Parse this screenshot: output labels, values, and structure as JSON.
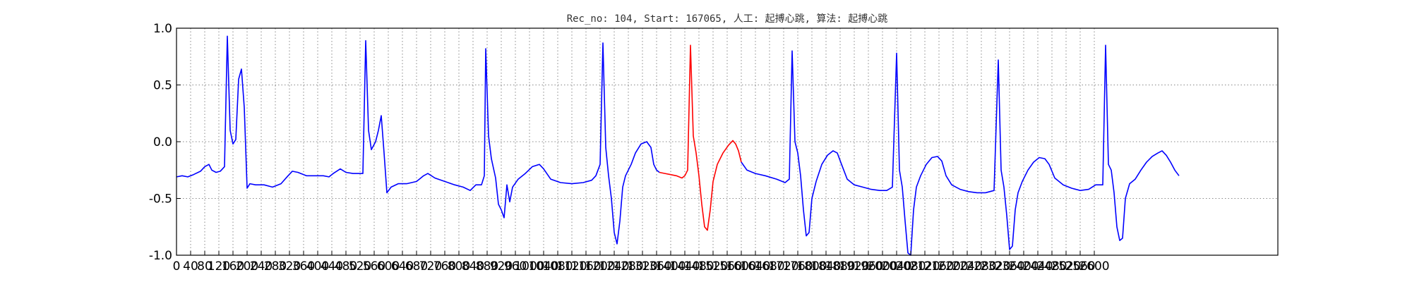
{
  "chart_data": {
    "type": "line",
    "title": "Rec_no: 104, Start: 167065, 人工: 起搏心跳, 算法: 起搏心跳",
    "xlabel": "",
    "ylabel": "",
    "xlim": [
      0,
      1560
    ],
    "ylim": [
      -1.0,
      1.0
    ],
    "grid": true,
    "y_ticks": [
      1.0,
      0.5,
      0.0,
      -0.5,
      -1.0
    ],
    "y_tick_labels": [
      "1.0",
      "0.5",
      "0.0",
      "-0.5",
      "-1.0"
    ],
    "x_tick_step": 20,
    "x_tick_labels": [
      "0",
      "40",
      "80",
      "120",
      "160",
      "200",
      "240",
      "280",
      "320",
      "360",
      "400",
      "440",
      "480",
      "520",
      "560",
      "600",
      "640",
      "680",
      "720",
      "760",
      "800",
      "840",
      "880",
      "920",
      "960",
      "1000",
      "1040",
      "1080",
      "1120",
      "1160",
      "1200",
      "1240",
      "1280",
      "1320",
      "1360",
      "1400",
      "1440",
      "1480",
      "1520",
      "1560",
      "1600",
      "1640",
      "1680",
      "1720",
      "1760",
      "1800",
      "1840",
      "1880",
      "1920",
      "1960",
      "2000",
      "2040",
      "2080",
      "2120",
      "2160",
      "2200",
      "2240",
      "2280",
      "2320",
      "2360",
      "2400",
      "2440",
      "2480",
      "2520",
      "2560",
      "2600"
    ],
    "series": [
      {
        "color": "#0000ff",
        "points": [
          [
            0,
            -0.31
          ],
          [
            8,
            -0.3
          ],
          [
            16,
            -0.31
          ],
          [
            24,
            -0.29
          ],
          [
            34,
            -0.26
          ],
          [
            40,
            -0.22
          ],
          [
            46,
            -0.2
          ],
          [
            50,
            -0.25
          ],
          [
            56,
            -0.27
          ],
          [
            62,
            -0.26
          ],
          [
            68,
            -0.22
          ],
          [
            72,
            0.93
          ],
          [
            76,
            0.1
          ],
          [
            80,
            -0.02
          ],
          [
            84,
            0.02
          ],
          [
            88,
            0.55
          ],
          [
            92,
            0.64
          ],
          [
            96,
            0.3
          ],
          [
            100,
            -0.41
          ],
          [
            104,
            -0.37
          ],
          [
            112,
            -0.38
          ],
          [
            124,
            -0.38
          ],
          [
            136,
            -0.4
          ],
          [
            148,
            -0.37
          ],
          [
            158,
            -0.3
          ],
          [
            164,
            -0.26
          ],
          [
            172,
            -0.27
          ],
          [
            184,
            -0.3
          ],
          [
            196,
            -0.3
          ],
          [
            208,
            -0.3
          ],
          [
            216,
            -0.31
          ],
          [
            222,
            -0.28
          ],
          [
            232,
            -0.24
          ],
          [
            240,
            -0.27
          ],
          [
            250,
            -0.28
          ],
          [
            258,
            -0.28
          ],
          [
            264,
            -0.28
          ],
          [
            268,
            0.89
          ],
          [
            272,
            0.1
          ],
          [
            276,
            -0.07
          ],
          [
            282,
            0.0
          ],
          [
            286,
            0.1
          ],
          [
            290,
            0.23
          ],
          [
            294,
            -0.1
          ],
          [
            298,
            -0.45
          ],
          [
            304,
            -0.4
          ],
          [
            314,
            -0.37
          ],
          [
            326,
            -0.37
          ],
          [
            340,
            -0.35
          ],
          [
            350,
            -0.3
          ],
          [
            356,
            -0.28
          ],
          [
            366,
            -0.32
          ],
          [
            380,
            -0.35
          ],
          [
            394,
            -0.38
          ],
          [
            406,
            -0.4
          ],
          [
            416,
            -0.43
          ],
          [
            424,
            -0.38
          ],
          [
            432,
            -0.38
          ],
          [
            436,
            -0.3
          ],
          [
            438,
            0.82
          ],
          [
            442,
            0.05
          ],
          [
            446,
            -0.15
          ],
          [
            452,
            -0.32
          ],
          [
            456,
            -0.55
          ],
          [
            460,
            -0.6
          ],
          [
            464,
            -0.67
          ],
          [
            468,
            -0.38
          ],
          [
            472,
            -0.53
          ],
          [
            476,
            -0.4
          ],
          [
            484,
            -0.33
          ],
          [
            494,
            -0.28
          ],
          [
            504,
            -0.22
          ],
          [
            514,
            -0.2
          ],
          [
            520,
            -0.24
          ],
          [
            530,
            -0.33
          ],
          [
            544,
            -0.36
          ],
          [
            560,
            -0.37
          ],
          [
            576,
            -0.36
          ],
          [
            588,
            -0.34
          ],
          [
            594,
            -0.3
          ],
          [
            600,
            -0.2
          ],
          [
            604,
            0.87
          ],
          [
            608,
            -0.05
          ],
          [
            612,
            -0.3
          ],
          [
            616,
            -0.5
          ],
          [
            620,
            -0.8
          ],
          [
            624,
            -0.9
          ],
          [
            628,
            -0.7
          ],
          [
            632,
            -0.4
          ],
          [
            636,
            -0.3
          ],
          [
            644,
            -0.2
          ],
          [
            650,
            -0.1
          ],
          [
            658,
            -0.02
          ],
          [
            666,
            0.0
          ],
          [
            672,
            -0.05
          ],
          [
            676,
            -0.2
          ],
          [
            680,
            -0.25
          ],
          [
            684,
            -0.27
          ]
        ]
      },
      {
        "color": "#ff0000",
        "points": [
          [
            684,
            -0.27
          ],
          [
            692,
            -0.28
          ],
          [
            700,
            -0.29
          ],
          [
            708,
            -0.3
          ],
          [
            716,
            -0.32
          ],
          [
            720,
            -0.3
          ],
          [
            724,
            -0.25
          ],
          [
            728,
            0.85
          ],
          [
            732,
            0.05
          ],
          [
            736,
            -0.1
          ],
          [
            740,
            -0.3
          ],
          [
            744,
            -0.55
          ],
          [
            748,
            -0.75
          ],
          [
            752,
            -0.78
          ],
          [
            756,
            -0.6
          ],
          [
            760,
            -0.35
          ],
          [
            766,
            -0.2
          ],
          [
            774,
            -0.1
          ],
          [
            782,
            -0.03
          ],
          [
            788,
            0.01
          ],
          [
            792,
            -0.02
          ],
          [
            796,
            -0.08
          ],
          [
            800,
            -0.18
          ]
        ]
      },
      {
        "color": "#0000ff",
        "points": [
          [
            800,
            -0.18
          ],
          [
            808,
            -0.25
          ],
          [
            820,
            -0.28
          ],
          [
            834,
            -0.3
          ],
          [
            850,
            -0.33
          ],
          [
            862,
            -0.36
          ],
          [
            868,
            -0.33
          ],
          [
            872,
            0.8
          ],
          [
            876,
            0.0
          ],
          [
            880,
            -0.1
          ],
          [
            884,
            -0.3
          ],
          [
            888,
            -0.6
          ],
          [
            892,
            -0.83
          ],
          [
            896,
            -0.8
          ],
          [
            900,
            -0.5
          ],
          [
            906,
            -0.35
          ],
          [
            914,
            -0.2
          ],
          [
            922,
            -0.12
          ],
          [
            930,
            -0.08
          ],
          [
            936,
            -0.1
          ],
          [
            942,
            -0.2
          ],
          [
            950,
            -0.33
          ],
          [
            960,
            -0.38
          ],
          [
            972,
            -0.4
          ],
          [
            984,
            -0.42
          ],
          [
            996,
            -0.43
          ],
          [
            1006,
            -0.43
          ],
          [
            1014,
            -0.4
          ],
          [
            1020,
            0.78
          ],
          [
            1024,
            -0.25
          ],
          [
            1028,
            -0.4
          ],
          [
            1032,
            -0.7
          ],
          [
            1036,
            -0.98
          ],
          [
            1040,
            -1.0
          ],
          [
            1044,
            -0.6
          ],
          [
            1048,
            -0.4
          ],
          [
            1054,
            -0.3
          ],
          [
            1062,
            -0.2
          ],
          [
            1070,
            -0.14
          ],
          [
            1078,
            -0.13
          ],
          [
            1084,
            -0.17
          ],
          [
            1090,
            -0.3
          ],
          [
            1098,
            -0.38
          ],
          [
            1110,
            -0.42
          ],
          [
            1122,
            -0.44
          ],
          [
            1134,
            -0.45
          ],
          [
            1146,
            -0.45
          ],
          [
            1158,
            -0.43
          ],
          [
            1164,
            0.72
          ],
          [
            1168,
            -0.25
          ],
          [
            1172,
            -0.4
          ],
          [
            1176,
            -0.65
          ],
          [
            1180,
            -0.95
          ],
          [
            1184,
            -0.92
          ],
          [
            1188,
            -0.6
          ],
          [
            1192,
            -0.45
          ],
          [
            1198,
            -0.35
          ],
          [
            1206,
            -0.25
          ],
          [
            1214,
            -0.18
          ],
          [
            1222,
            -0.14
          ],
          [
            1230,
            -0.15
          ],
          [
            1236,
            -0.2
          ],
          [
            1244,
            -0.32
          ],
          [
            1256,
            -0.38
          ],
          [
            1268,
            -0.41
          ],
          [
            1280,
            -0.43
          ],
          [
            1292,
            -0.42
          ],
          [
            1302,
            -0.38
          ],
          [
            1312,
            -0.38
          ],
          [
            1316,
            0.85
          ],
          [
            1320,
            -0.2
          ],
          [
            1324,
            -0.25
          ],
          [
            1328,
            -0.45
          ],
          [
            1332,
            -0.75
          ],
          [
            1336,
            -0.87
          ],
          [
            1340,
            -0.85
          ],
          [
            1344,
            -0.5
          ],
          [
            1350,
            -0.37
          ],
          [
            1358,
            -0.33
          ],
          [
            1366,
            -0.25
          ],
          [
            1374,
            -0.18
          ],
          [
            1382,
            -0.13
          ],
          [
            1390,
            -0.1
          ],
          [
            1396,
            -0.08
          ],
          [
            1402,
            -0.12
          ],
          [
            1408,
            -0.18
          ],
          [
            1414,
            -0.25
          ],
          [
            1420,
            -0.3
          ]
        ]
      }
    ]
  }
}
